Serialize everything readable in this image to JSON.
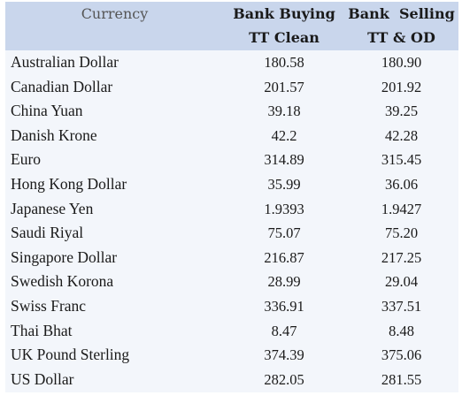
{
  "table": {
    "headers": {
      "currency": [
        "Currency"
      ],
      "buying": [
        "Bank Buying",
        "TT Clean"
      ],
      "selling": [
        "Bank  Selling",
        "TT & OD"
      ]
    },
    "rows": [
      {
        "currency": "Australian Dollar",
        "buying": "180.58",
        "selling": "180.90"
      },
      {
        "currency": "Canadian Dollar",
        "buying": "201.57",
        "selling": "201.92"
      },
      {
        "currency": "China Yuan",
        "buying": "39.18",
        "selling": "39.25"
      },
      {
        "currency": "Danish Krone",
        "buying": "42.2",
        "selling": "42.28"
      },
      {
        "currency": "Euro",
        "buying": "314.89",
        "selling": "315.45"
      },
      {
        "currency": "Hong Kong Dollar",
        "buying": "35.99",
        "selling": "36.06"
      },
      {
        "currency": "Japanese Yen",
        "buying": "1.9393",
        "selling": "1.9427"
      },
      {
        "currency": "Saudi Riyal",
        "buying": "75.07",
        "selling": "75.20"
      },
      {
        "currency": "Singapore Dollar",
        "buying": "216.87",
        "selling": "217.25"
      },
      {
        "currency": "Swedish Korona",
        "buying": "28.99",
        "selling": "29.04"
      },
      {
        "currency": "Swiss Franc",
        "buying": "336.91",
        "selling": "337.51"
      },
      {
        "currency": "Thai Bhat",
        "buying": "8.47",
        "selling": "8.48"
      },
      {
        "currency": "UK Pound Sterling",
        "buying": "374.39",
        "selling": "375.06"
      },
      {
        "currency": "US Dollar",
        "buying": "282.05",
        "selling": "281.55"
      }
    ]
  },
  "colors": {
    "header_bg": "#c9d6ec",
    "body_bg": "#f3f6fb"
  }
}
